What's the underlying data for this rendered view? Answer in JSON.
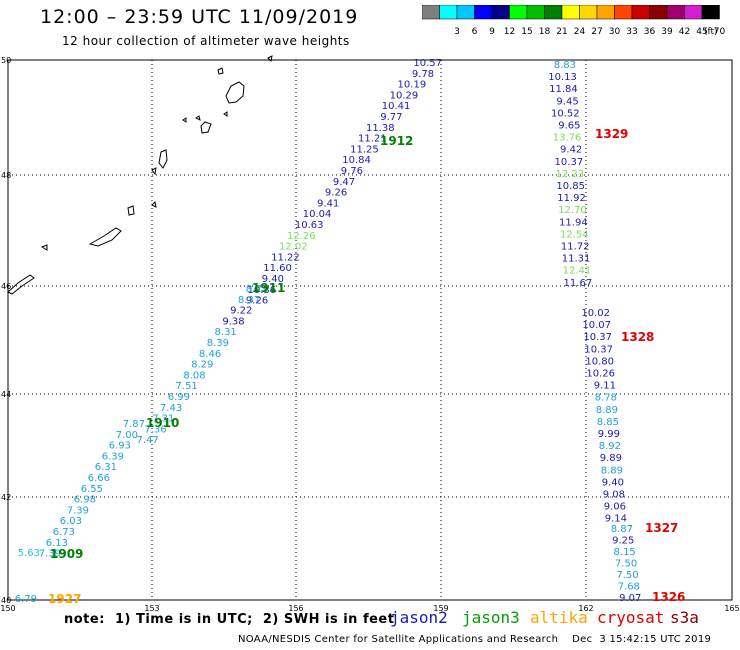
{
  "header": {
    "title": "12:00 – 23:59 UTC 11/09/2019",
    "subtitle": "12 hour collection of altimeter wave heights"
  },
  "colorbar": {
    "unit": "(ft)",
    "bins": [
      {
        "label": "",
        "color": "#7f7f7f"
      },
      {
        "label": "3",
        "color": "#00ffff"
      },
      {
        "label": "6",
        "color": "#00c8ff"
      },
      {
        "label": "9",
        "color": "#0000ff"
      },
      {
        "label": "12",
        "color": "#00008b"
      },
      {
        "label": "15",
        "color": "#00ff00"
      },
      {
        "label": "18",
        "color": "#00c000"
      },
      {
        "label": "21",
        "color": "#008000"
      },
      {
        "label": "24",
        "color": "#ffff00"
      },
      {
        "label": "27",
        "color": "#ffd700"
      },
      {
        "label": "30",
        "color": "#ffa500"
      },
      {
        "label": "33",
        "color": "#ff4500"
      },
      {
        "label": "36",
        "color": "#cc0000"
      },
      {
        "label": "39",
        "color": "#8b0000"
      },
      {
        "label": "42",
        "color": "#a0006e"
      },
      {
        "label": "45",
        "color": "#d020d0"
      },
      {
        "label": "70",
        "color": "#000000"
      }
    ]
  },
  "axes": {
    "x_ticks": [
      "150",
      "153",
      "156",
      "159",
      "162",
      "165"
    ],
    "y_ticks": [
      "50",
      "48",
      "46",
      "44",
      "42",
      "40"
    ]
  },
  "tracks": [
    {
      "id": "1912",
      "color": "#008000",
      "values": [
        {
          "v": "10.57",
          "c": "#1a1ab4"
        },
        {
          "v": "9.78",
          "c": "#1a1ab4"
        },
        {
          "v": "10.19",
          "c": "#1a1ab4"
        },
        {
          "v": "10.29",
          "c": "#1a1ab4"
        },
        {
          "v": "10.41",
          "c": "#1a1ab4"
        },
        {
          "v": "9.77",
          "c": "#1a1ab4"
        },
        {
          "v": "11.38",
          "c": "#1a1ab4"
        },
        {
          "v": "11.21",
          "c": "#1a1ab4"
        },
        {
          "v": "11.25",
          "c": "#1a1ab4"
        },
        {
          "v": "10.84",
          "c": "#1a1ab4"
        },
        {
          "v": "9.76",
          "c": "#1a1ab4"
        },
        {
          "v": "9.47",
          "c": "#1a1ab4"
        },
        {
          "v": "9.26",
          "c": "#1a1ab4"
        },
        {
          "v": "9.41",
          "c": "#1a1ab4"
        },
        {
          "v": "10.04",
          "c": "#1a1ab4"
        },
        {
          "v": "10.63",
          "c": "#1a1ab4"
        },
        {
          "v": "12.26",
          "c": "#7fdc5a"
        },
        {
          "v": "12.02",
          "c": "#7fdc5a"
        },
        {
          "v": "11.22",
          "c": "#1a1ab4"
        },
        {
          "v": "11.60",
          "c": "#1a1ab4"
        },
        {
          "v": "9.40",
          "c": "#1a1ab4"
        },
        {
          "v": "10.36",
          "c": "#1a1ab4"
        },
        {
          "v": "9.26",
          "c": "#1a1ab4"
        }
      ]
    },
    {
      "id": "1911",
      "color": "#008000",
      "values": [
        {
          "v": "8.22",
          "c": "#20a0e0"
        },
        {
          "v": "8.37",
          "c": "#20a0e0"
        },
        {
          "v": "9.22",
          "c": "#1a1ab4"
        },
        {
          "v": "9.38",
          "c": "#1a1ab4"
        },
        {
          "v": "8.31",
          "c": "#20a0e0"
        },
        {
          "v": "8.39",
          "c": "#20a0e0"
        },
        {
          "v": "8.46",
          "c": "#20a0e0"
        },
        {
          "v": "8.29",
          "c": "#20a0e0"
        },
        {
          "v": "8.08",
          "c": "#20a0e0"
        },
        {
          "v": "7.51",
          "c": "#20a0e0"
        },
        {
          "v": "6.99",
          "c": "#20a0e0"
        },
        {
          "v": "7.43",
          "c": "#20a0e0"
        },
        {
          "v": "7.31",
          "c": "#20a0e0"
        },
        {
          "v": "7.36",
          "c": "#20a0e0"
        },
        {
          "v": "7.47",
          "c": "#20a0e0"
        }
      ]
    },
    {
      "id": "1910",
      "color": "#008000",
      "values": [
        {
          "v": "7.87",
          "c": "#20a0e0"
        },
        {
          "v": "7.00",
          "c": "#20a0e0"
        },
        {
          "v": "6.93",
          "c": "#20a0e0"
        },
        {
          "v": "6.39",
          "c": "#20a0e0"
        },
        {
          "v": "6.31",
          "c": "#20a0e0"
        },
        {
          "v": "6.66",
          "c": "#20a0e0"
        },
        {
          "v": "6.55",
          "c": "#20a0e0"
        },
        {
          "v": "6.98",
          "c": "#20a0e0"
        },
        {
          "v": "7.39",
          "c": "#20a0e0"
        },
        {
          "v": "6.03",
          "c": "#20a0e0"
        },
        {
          "v": "6.73",
          "c": "#20a0e0"
        },
        {
          "v": "6.13",
          "c": "#20a0e0"
        },
        {
          "v": "7.39",
          "c": "#20a0e0"
        }
      ]
    },
    {
      "id": "1909",
      "color": "#008000",
      "values": [
        {
          "v": "5.63",
          "c": "#20c8e0"
        }
      ]
    },
    {
      "id": "1927",
      "color": "#ffa500",
      "values": [
        {
          "v": "6.79",
          "c": "#20a0e0"
        }
      ]
    },
    {
      "id": "1329",
      "color": "#e00000",
      "values": [
        {
          "v": "8.83",
          "c": "#20a0e0"
        },
        {
          "v": "10.13",
          "c": "#1a1ab4"
        },
        {
          "v": "11.84",
          "c": "#1a1ab4"
        },
        {
          "v": "9.45",
          "c": "#1a1ab4"
        },
        {
          "v": "10.52",
          "c": "#1a1ab4"
        },
        {
          "v": "9.65",
          "c": "#1a1ab4"
        },
        {
          "v": "13.76",
          "c": "#7fdc5a"
        },
        {
          "v": "9.42",
          "c": "#1a1ab4"
        },
        {
          "v": "10.37",
          "c": "#1a1ab4"
        },
        {
          "v": "12.23",
          "c": "#7fdc5a"
        },
        {
          "v": "10.85",
          "c": "#1a1ab4"
        },
        {
          "v": "11.92",
          "c": "#1a1ab4"
        },
        {
          "v": "12.70",
          "c": "#7fdc5a"
        },
        {
          "v": "11.94",
          "c": "#1a1ab4"
        },
        {
          "v": "12.54",
          "c": "#7fdc5a"
        },
        {
          "v": "11.72",
          "c": "#1a1ab4"
        },
        {
          "v": "11.31",
          "c": "#1a1ab4"
        },
        {
          "v": "12.41",
          "c": "#7fdc5a"
        },
        {
          "v": "11.67",
          "c": "#1a1ab4"
        }
      ]
    },
    {
      "id": "1328",
      "color": "#e00000",
      "values": [
        {
          "v": "10.02",
          "c": "#1a1ab4"
        },
        {
          "v": "10.07",
          "c": "#1a1ab4"
        },
        {
          "v": "10.37",
          "c": "#1a1ab4"
        },
        {
          "v": "10.37",
          "c": "#1a1ab4"
        },
        {
          "v": "10.80",
          "c": "#1a1ab4"
        },
        {
          "v": "10.26",
          "c": "#1a1ab4"
        },
        {
          "v": "9.11",
          "c": "#1a1ab4"
        },
        {
          "v": "8.78",
          "c": "#20a0e0"
        },
        {
          "v": "8.89",
          "c": "#20a0e0"
        },
        {
          "v": "8.85",
          "c": "#20a0e0"
        },
        {
          "v": "9.99",
          "c": "#1a1ab4"
        },
        {
          "v": "8.92",
          "c": "#20a0e0"
        },
        {
          "v": "9.89",
          "c": "#1a1ab4"
        },
        {
          "v": "8.89",
          "c": "#20a0e0"
        },
        {
          "v": "9.40",
          "c": "#1a1ab4"
        },
        {
          "v": "9.08",
          "c": "#1a1ab4"
        },
        {
          "v": "9.06",
          "c": "#1a1ab4"
        },
        {
          "v": "9.14",
          "c": "#1a1ab4"
        }
      ]
    },
    {
      "id": "1327",
      "color": "#e00000",
      "values": [
        {
          "v": "8.87",
          "c": "#20a0e0"
        },
        {
          "v": "9.25",
          "c": "#1a1ab4"
        },
        {
          "v": "8.15",
          "c": "#20a0e0"
        },
        {
          "v": "7.50",
          "c": "#20a0e0"
        },
        {
          "v": "7.50",
          "c": "#20a0e0"
        },
        {
          "v": "7.68",
          "c": "#20a0e0"
        },
        {
          "v": "9.07",
          "c": "#1a1ab4"
        }
      ]
    },
    {
      "id": "1326",
      "color": "#e00000",
      "values": []
    }
  ],
  "footer": {
    "note": "note:  1) Time is in UTC;  2) SWH is in feet",
    "legend": [
      {
        "label": "jason2",
        "color": "#1a1ab4"
      },
      {
        "label": "jason3",
        "color": "#00a000"
      },
      {
        "label": "altika",
        "color": "#ffa500"
      },
      {
        "label": "cryosat",
        "color": "#e00000"
      },
      {
        "label": "s3a",
        "color": "#8b0000"
      }
    ],
    "credit": "NOAA/NESDIS Center for Satellite Applications and Research    Dec  3 15:42:15 UTC 2019"
  }
}
